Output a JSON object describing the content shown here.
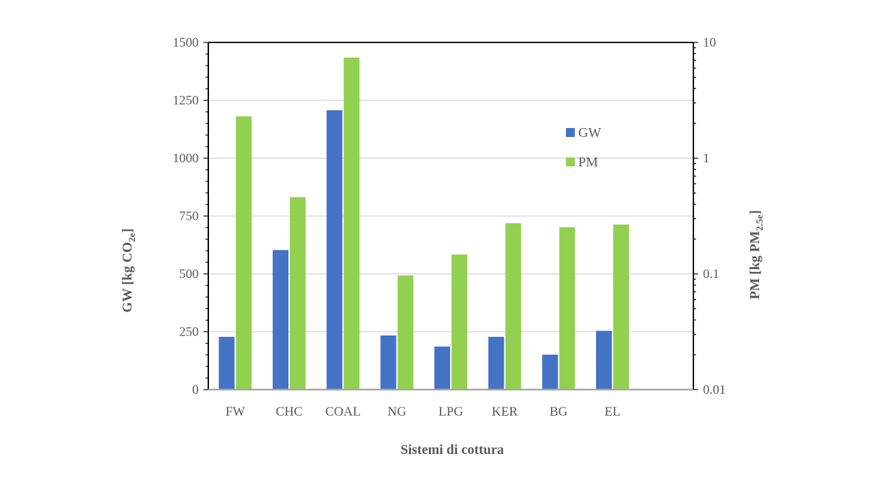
{
  "chart_data": {
    "type": "bar",
    "title": "",
    "xlabel": "Sistemi di cottura",
    "ylabel": "GW  [kg CO",
    "ylabel_sub": "2e",
    "ylabel_end": "]",
    "y2label": "PM  [kg PM",
    "y2label_sub": "2.5e",
    "y2label_end": "]",
    "categories": [
      "FW",
      "CHC",
      "COAL",
      "NG",
      "LPG",
      "KER",
      "BG",
      "EL"
    ],
    "empty_slots_after": 1,
    "ylim": [
      0,
      1500
    ],
    "yticks": [
      "0",
      "250",
      "500",
      "750",
      "1000",
      "1250",
      "1500"
    ],
    "y2lim": [
      0.01,
      10
    ],
    "y2scale": "log",
    "y2ticks": [
      "0.01",
      "0.1",
      "1",
      "10"
    ],
    "grid": true,
    "legend_position": "upper-right-inside",
    "series": [
      {
        "name": "GW",
        "axis": "left",
        "color": "#4472C4",
        "values": [
          228,
          603,
          1207,
          234,
          186,
          228,
          151,
          254
        ]
      },
      {
        "name": "PM",
        "axis": "right",
        "color": "#92D050",
        "values": [
          2.3,
          0.46,
          7.4,
          0.097,
          0.147,
          0.274,
          0.253,
          0.267
        ]
      }
    ]
  }
}
